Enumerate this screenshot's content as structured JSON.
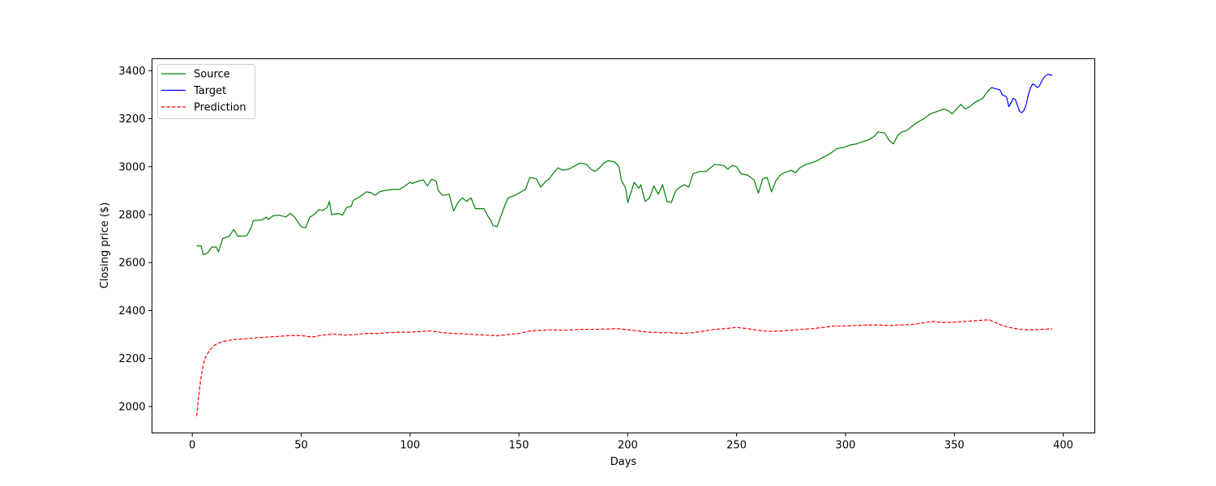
{
  "chart_data": {
    "type": "line",
    "xlabel": "Days",
    "ylabel": "Closing price ($)",
    "xlim": [
      -18.5,
      414.5
    ],
    "ylim": [
      1890,
      3450
    ],
    "xticks": [
      0,
      50,
      100,
      150,
      200,
      250,
      300,
      350,
      400
    ],
    "yticks": [
      2000,
      2200,
      2400,
      2600,
      2800,
      3000,
      3200,
      3400
    ],
    "grid": false,
    "legend": {
      "position": "top-left"
    },
    "series": [
      {
        "name": "Source",
        "color": "#008000",
        "style": "solid",
        "points": [
          [
            2,
            2670
          ],
          [
            4,
            2670
          ],
          [
            5,
            2633
          ],
          [
            7,
            2640
          ],
          [
            9,
            2665
          ],
          [
            11,
            2665
          ],
          [
            12,
            2645
          ],
          [
            14,
            2700
          ],
          [
            17,
            2710
          ],
          [
            19,
            2738
          ],
          [
            21,
            2710
          ],
          [
            25,
            2712
          ],
          [
            27,
            2745
          ],
          [
            28,
            2775
          ],
          [
            32,
            2778
          ],
          [
            34,
            2790
          ],
          [
            35,
            2780
          ],
          [
            37,
            2795
          ],
          [
            40,
            2798
          ],
          [
            43,
            2790
          ],
          [
            45,
            2805
          ],
          [
            47,
            2790
          ],
          [
            50,
            2750
          ],
          [
            52,
            2745
          ],
          [
            54,
            2790
          ],
          [
            56,
            2800
          ],
          [
            58,
            2820
          ],
          [
            60,
            2818
          ],
          [
            62,
            2830
          ],
          [
            63,
            2855
          ],
          [
            64,
            2800
          ],
          [
            67,
            2805
          ],
          [
            69,
            2798
          ],
          [
            71,
            2830
          ],
          [
            73,
            2835
          ],
          [
            74,
            2860
          ],
          [
            77,
            2875
          ],
          [
            80,
            2895
          ],
          [
            82,
            2892
          ],
          [
            84,
            2880
          ],
          [
            86,
            2895
          ],
          [
            88,
            2900
          ],
          [
            92,
            2905
          ],
          [
            95,
            2905
          ],
          [
            97,
            2915
          ],
          [
            100,
            2935
          ],
          [
            101,
            2930
          ],
          [
            104,
            2940
          ],
          [
            106,
            2945
          ],
          [
            108,
            2920
          ],
          [
            110,
            2948
          ],
          [
            112,
            2940
          ],
          [
            113,
            2900
          ],
          [
            115,
            2880
          ],
          [
            118,
            2885
          ],
          [
            120,
            2815
          ],
          [
            122,
            2850
          ],
          [
            124,
            2870
          ],
          [
            126,
            2855
          ],
          [
            128,
            2870
          ],
          [
            130,
            2825
          ],
          [
            134,
            2825
          ],
          [
            136,
            2790
          ],
          [
            137,
            2778
          ],
          [
            138,
            2755
          ],
          [
            140,
            2750
          ],
          [
            143,
            2825
          ],
          [
            145,
            2870
          ],
          [
            148,
            2880
          ],
          [
            150,
            2890
          ],
          [
            153,
            2905
          ],
          [
            155,
            2955
          ],
          [
            158,
            2950
          ],
          [
            160,
            2915
          ],
          [
            162,
            2935
          ],
          [
            164,
            2950
          ],
          [
            166,
            2975
          ],
          [
            168,
            2995
          ],
          [
            170,
            2985
          ],
          [
            173,
            2990
          ],
          [
            176,
            3005
          ],
          [
            178,
            3015
          ],
          [
            181,
            3010
          ],
          [
            183,
            2990
          ],
          [
            185,
            2980
          ],
          [
            187,
            2995
          ],
          [
            189,
            3015
          ],
          [
            191,
            3025
          ],
          [
            194,
            3020
          ],
          [
            196,
            3000
          ],
          [
            197,
            2945
          ],
          [
            199,
            2910
          ],
          [
            200,
            2850
          ],
          [
            201,
            2880
          ],
          [
            203,
            2935
          ],
          [
            205,
            2910
          ],
          [
            206,
            2925
          ],
          [
            208,
            2855
          ],
          [
            210,
            2870
          ],
          [
            212,
            2920
          ],
          [
            214,
            2885
          ],
          [
            216,
            2925
          ],
          [
            218,
            2855
          ],
          [
            220,
            2850
          ],
          [
            222,
            2900
          ],
          [
            224,
            2915
          ],
          [
            226,
            2925
          ],
          [
            228,
            2915
          ],
          [
            230,
            2970
          ],
          [
            233,
            2980
          ],
          [
            236,
            2980
          ],
          [
            238,
            2995
          ],
          [
            240,
            3010
          ],
          [
            244,
            3005
          ],
          [
            246,
            2990
          ],
          [
            248,
            3005
          ],
          [
            250,
            3000
          ],
          [
            252,
            2970
          ],
          [
            255,
            2965
          ],
          [
            258,
            2945
          ],
          [
            260,
            2890
          ],
          [
            262,
            2950
          ],
          [
            264,
            2955
          ],
          [
            266,
            2895
          ],
          [
            268,
            2940
          ],
          [
            270,
            2965
          ],
          [
            272,
            2975
          ],
          [
            275,
            2985
          ],
          [
            277,
            2975
          ],
          [
            279,
            2995
          ],
          [
            282,
            3010
          ],
          [
            284,
            3015
          ],
          [
            287,
            3025
          ],
          [
            290,
            3040
          ],
          [
            293,
            3055
          ],
          [
            296,
            3075
          ],
          [
            299,
            3080
          ],
          [
            302,
            3090
          ],
          [
            305,
            3095
          ],
          [
            308,
            3105
          ],
          [
            310,
            3110
          ],
          [
            313,
            3125
          ],
          [
            315,
            3145
          ],
          [
            318,
            3140
          ],
          [
            320,
            3110
          ],
          [
            322,
            3095
          ],
          [
            324,
            3130
          ],
          [
            326,
            3145
          ],
          [
            328,
            3150
          ],
          [
            330,
            3165
          ],
          [
            333,
            3185
          ],
          [
            336,
            3200
          ],
          [
            339,
            3220
          ],
          [
            342,
            3230
          ],
          [
            345,
            3240
          ],
          [
            347,
            3235
          ],
          [
            349,
            3220
          ],
          [
            351,
            3240
          ],
          [
            353,
            3260
          ],
          [
            355,
            3240
          ],
          [
            357,
            3250
          ],
          [
            359,
            3265
          ],
          [
            361,
            3275
          ],
          [
            363,
            3285
          ],
          [
            365,
            3310
          ],
          [
            367,
            3330
          ]
        ]
      },
      {
        "name": "Target",
        "color": "#0000ff",
        "style": "solid",
        "points": [
          [
            367,
            3330
          ],
          [
            369,
            3325
          ],
          [
            371,
            3320
          ],
          [
            372,
            3300
          ],
          [
            373,
            3295
          ],
          [
            374,
            3290
          ],
          [
            375,
            3250
          ],
          [
            376,
            3265
          ],
          [
            377,
            3285
          ],
          [
            378,
            3280
          ],
          [
            379,
            3255
          ],
          [
            380,
            3230
          ],
          [
            381,
            3225
          ],
          [
            382,
            3235
          ],
          [
            383,
            3260
          ],
          [
            384,
            3300
          ],
          [
            385,
            3330
          ],
          [
            386,
            3345
          ],
          [
            387,
            3340
          ],
          [
            388,
            3330
          ],
          [
            389,
            3335
          ],
          [
            390,
            3355
          ],
          [
            391,
            3370
          ],
          [
            392,
            3380
          ],
          [
            393,
            3385
          ],
          [
            395,
            3380
          ]
        ]
      },
      {
        "name": "Prediction",
        "color": "#ff0000",
        "style": "dashed",
        "points": [
          [
            2,
            1960
          ],
          [
            3,
            2050
          ],
          [
            4,
            2120
          ],
          [
            5,
            2170
          ],
          [
            6,
            2205
          ],
          [
            8,
            2235
          ],
          [
            10,
            2255
          ],
          [
            13,
            2268
          ],
          [
            16,
            2275
          ],
          [
            20,
            2280
          ],
          [
            25,
            2283
          ],
          [
            30,
            2287
          ],
          [
            35,
            2290
          ],
          [
            40,
            2293
          ],
          [
            45,
            2296
          ],
          [
            50,
            2296
          ],
          [
            55,
            2290
          ],
          [
            60,
            2298
          ],
          [
            65,
            2302
          ],
          [
            70,
            2298
          ],
          [
            75,
            2300
          ],
          [
            80,
            2305
          ],
          [
            85,
            2305
          ],
          [
            90,
            2308
          ],
          [
            95,
            2310
          ],
          [
            100,
            2310
          ],
          [
            105,
            2313
          ],
          [
            110,
            2315
          ],
          [
            115,
            2308
          ],
          [
            120,
            2305
          ],
          [
            125,
            2303
          ],
          [
            130,
            2300
          ],
          [
            135,
            2298
          ],
          [
            140,
            2295
          ],
          [
            145,
            2300
          ],
          [
            150,
            2305
          ],
          [
            155,
            2315
          ],
          [
            160,
            2318
          ],
          [
            165,
            2320
          ],
          [
            170,
            2318
          ],
          [
            175,
            2320
          ],
          [
            180,
            2322
          ],
          [
            185,
            2322
          ],
          [
            190,
            2323
          ],
          [
            195,
            2325
          ],
          [
            200,
            2320
          ],
          [
            205,
            2315
          ],
          [
            210,
            2310
          ],
          [
            215,
            2308
          ],
          [
            220,
            2308
          ],
          [
            225,
            2305
          ],
          [
            230,
            2308
          ],
          [
            235,
            2315
          ],
          [
            240,
            2322
          ],
          [
            245,
            2325
          ],
          [
            250,
            2330
          ],
          [
            255,
            2325
          ],
          [
            260,
            2318
          ],
          [
            265,
            2313
          ],
          [
            270,
            2315
          ],
          [
            275,
            2318
          ],
          [
            280,
            2322
          ],
          [
            285,
            2325
          ],
          [
            290,
            2330
          ],
          [
            295,
            2336
          ],
          [
            300,
            2336
          ],
          [
            305,
            2338
          ],
          [
            310,
            2340
          ],
          [
            315,
            2340
          ],
          [
            320,
            2338
          ],
          [
            325,
            2340
          ],
          [
            330,
            2342
          ],
          [
            335,
            2348
          ],
          [
            340,
            2355
          ],
          [
            345,
            2350
          ],
          [
            350,
            2352
          ],
          [
            355,
            2355
          ],
          [
            360,
            2358
          ],
          [
            366,
            2362
          ],
          [
            370,
            2345
          ],
          [
            375,
            2330
          ],
          [
            380,
            2322
          ],
          [
            385,
            2320
          ],
          [
            390,
            2322
          ],
          [
            395,
            2324
          ]
        ]
      }
    ]
  }
}
